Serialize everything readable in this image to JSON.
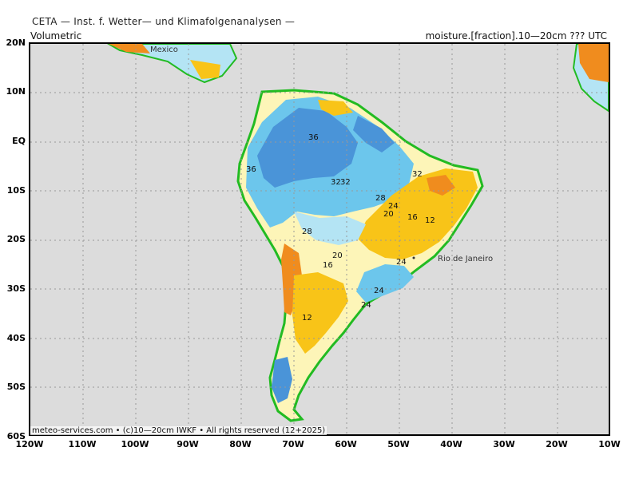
{
  "header": {
    "title": "CETA — Inst. f. Wetter— und Klimafolgenanalysen —",
    "left_label": "Volumetric",
    "right_label": "moisture.[fraction].10—20cm ??? UTC"
  },
  "map": {
    "lat_labels": [
      "20N",
      "10N",
      "EQ",
      "10S",
      "20S",
      "30S",
      "40S",
      "50S",
      "60S"
    ],
    "lon_labels": [
      "120W",
      "110W",
      "100W",
      "90W",
      "80W",
      "70W",
      "60W",
      "50W",
      "40W",
      "30W",
      "20W",
      "10W"
    ],
    "city_label": "Rio de Janeiro",
    "place_label": "Mexico",
    "contour_labels": [
      "36",
      "36",
      "32",
      "32",
      "32",
      "28",
      "24",
      "20",
      "16",
      "12",
      "28",
      "20",
      "16",
      "12",
      "24",
      "24",
      "24"
    ],
    "colors": {
      "ocean": "#dcdcdc",
      "coast": "#22bb22",
      "very_dry": "#f08c1e",
      "dry": "#f8c418",
      "moderate": "#fdf5b8",
      "moist": "#b4e4f4",
      "wet": "#6cc6ec",
      "very_wet": "#4a94d8"
    }
  },
  "footer": {
    "credit": "meteo-services.com • (c)10—20cm IWKF • All rights reserved (12+2025)"
  }
}
